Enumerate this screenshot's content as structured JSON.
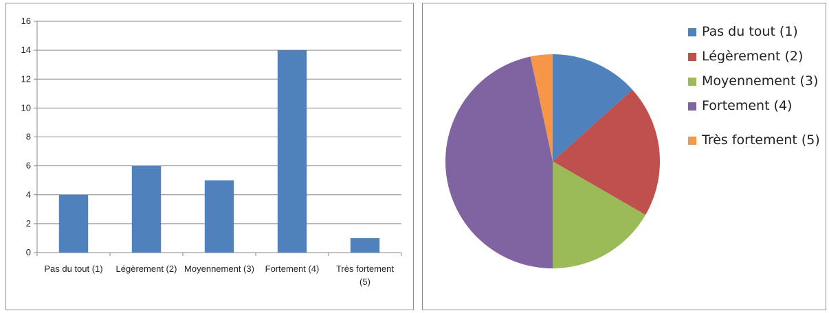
{
  "chart_data": [
    {
      "type": "bar",
      "categories": [
        "Pas du tout (1)",
        "Légèrement (2)",
        "Moyennement (3)",
        "Fortement (4)",
        "Très fortement (5)"
      ],
      "values": [
        4,
        6,
        5,
        14,
        1
      ],
      "ylim": [
        0,
        16
      ],
      "yticks": [
        0,
        2,
        4,
        6,
        8,
        10,
        12,
        14,
        16
      ],
      "grid": true,
      "bar_color": "#4F81BD"
    },
    {
      "type": "pie",
      "labels": [
        "Pas du tout (1)",
        "Légèrement (2)",
        "Moyennement (3)",
        "Fortement (4)",
        "Très fortement (5)"
      ],
      "values": [
        4,
        6,
        5,
        14,
        1
      ],
      "colors": [
        "#4F81BD",
        "#C0504D",
        "#9BBB59",
        "#8064A2",
        "#F79646"
      ],
      "legend": "right"
    }
  ]
}
